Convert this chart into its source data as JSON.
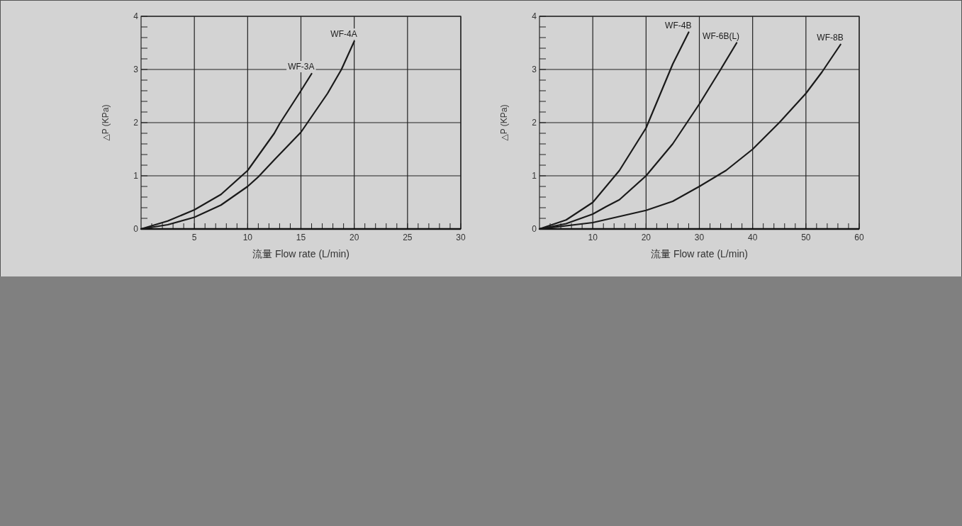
{
  "chart_data": [
    {
      "type": "line",
      "xlabel": "流量 Flow rate (L/min)",
      "ylabel": "△P (KPa)",
      "grid": true,
      "xlim": [
        0,
        30
      ],
      "ylim": [
        0,
        4
      ],
      "xticks": [
        {
          "value": 1,
          "label": null
        },
        {
          "value": 2,
          "label": null
        },
        {
          "value": 3,
          "label": null
        },
        {
          "value": 4,
          "label": null
        },
        5,
        {
          "value": 6,
          "label": null
        },
        {
          "value": 7,
          "label": null
        },
        {
          "value": 8,
          "label": null
        },
        {
          "value": 9,
          "label": null
        },
        10,
        {
          "value": 11,
          "label": null
        },
        {
          "value": 12,
          "label": null
        },
        {
          "value": 13,
          "label": null
        },
        {
          "value": 14,
          "label": null
        },
        15,
        {
          "value": 16,
          "label": null
        },
        {
          "value": 17,
          "label": null
        },
        {
          "value": 18,
          "label": null
        },
        {
          "value": 19,
          "label": null
        },
        20,
        {
          "value": 21,
          "label": null
        },
        {
          "value": 22,
          "label": null
        },
        {
          "value": 23,
          "label": null
        },
        {
          "value": 24,
          "label": null
        },
        25,
        {
          "value": 26,
          "label": null
        },
        {
          "value": 27,
          "label": null
        },
        {
          "value": 28,
          "label": null
        },
        {
          "value": 29,
          "label": null
        },
        30
      ],
      "yticks": [
        0,
        {
          "value": 0.2,
          "label": null
        },
        {
          "value": 0.4,
          "label": null
        },
        {
          "value": 0.6,
          "label": null
        },
        {
          "value": 0.8,
          "label": null
        },
        1,
        {
          "value": 1.2,
          "label": null
        },
        {
          "value": 1.4,
          "label": null
        },
        {
          "value": 1.6,
          "label": null
        },
        {
          "value": 1.8,
          "label": null
        },
        2,
        {
          "value": 2.2,
          "label": null
        },
        {
          "value": 2.4,
          "label": null
        },
        {
          "value": 2.6,
          "label": null
        },
        {
          "value": 2.8,
          "label": null
        },
        3,
        {
          "value": 3.2,
          "label": null
        },
        {
          "value": 3.4,
          "label": null
        },
        {
          "value": 3.6,
          "label": null
        },
        {
          "value": 3.8,
          "label": null
        },
        4
      ],
      "series": [
        {
          "name": "WF-3A",
          "color": "#1a1a1a",
          "x": [
            0,
            2.5,
            5,
            7.5,
            10,
            12.5,
            13,
            15,
            16
          ],
          "values": [
            0,
            0.15,
            0.36,
            0.65,
            1.1,
            1.8,
            1.98,
            2.6,
            2.92
          ]
        },
        {
          "name": "WF-4A",
          "color": "#1a1a1a",
          "x": [
            0,
            2.5,
            5,
            7.5,
            10,
            11,
            12.5,
            15,
            17.5,
            18.8,
            20
          ],
          "values": [
            0,
            0.08,
            0.22,
            0.45,
            0.8,
            0.98,
            1.3,
            1.82,
            2.55,
            3.0,
            3.53
          ]
        }
      ]
    },
    {
      "type": "line",
      "xlabel": "流量 Flow rate (L/min)",
      "ylabel": "△P (KPa)",
      "grid": true,
      "xlim": [
        0,
        60
      ],
      "ylim": [
        0,
        4
      ],
      "xticks": [
        {
          "value": 2,
          "label": null
        },
        {
          "value": 4,
          "label": null
        },
        {
          "value": 6,
          "label": null
        },
        {
          "value": 8,
          "label": null
        },
        10,
        {
          "value": 12,
          "label": null
        },
        {
          "value": 14,
          "label": null
        },
        {
          "value": 16,
          "label": null
        },
        {
          "value": 18,
          "label": null
        },
        20,
        {
          "value": 22,
          "label": null
        },
        {
          "value": 24,
          "label": null
        },
        {
          "value": 26,
          "label": null
        },
        {
          "value": 28,
          "label": null
        },
        30,
        {
          "value": 32,
          "label": null
        },
        {
          "value": 34,
          "label": null
        },
        {
          "value": 36,
          "label": null
        },
        {
          "value": 38,
          "label": null
        },
        40,
        {
          "value": 42,
          "label": null
        },
        {
          "value": 44,
          "label": null
        },
        {
          "value": 46,
          "label": null
        },
        {
          "value": 48,
          "label": null
        },
        50,
        {
          "value": 52,
          "label": null
        },
        {
          "value": 54,
          "label": null
        },
        {
          "value": 56,
          "label": null
        },
        {
          "value": 58,
          "label": null
        },
        60
      ],
      "yticks": [
        0,
        {
          "value": 0.2,
          "label": null
        },
        {
          "value": 0.4,
          "label": null
        },
        {
          "value": 0.6,
          "label": null
        },
        {
          "value": 0.8,
          "label": null
        },
        1,
        {
          "value": 1.2,
          "label": null
        },
        {
          "value": 1.4,
          "label": null
        },
        {
          "value": 1.6,
          "label": null
        },
        {
          "value": 1.8,
          "label": null
        },
        2,
        {
          "value": 2.2,
          "label": null
        },
        {
          "value": 2.4,
          "label": null
        },
        {
          "value": 2.6,
          "label": null
        },
        {
          "value": 2.8,
          "label": null
        },
        3,
        {
          "value": 3.2,
          "label": null
        },
        {
          "value": 3.4,
          "label": null
        },
        {
          "value": 3.6,
          "label": null
        },
        {
          "value": 3.8,
          "label": null
        },
        4
      ],
      "series": [
        {
          "name": "WF-4B",
          "color": "#1a1a1a",
          "x": [
            0,
            5,
            10,
            15,
            20,
            22.5,
            25,
            28
          ],
          "values": [
            0,
            0.17,
            0.5,
            1.1,
            1.9,
            2.5,
            3.1,
            3.7
          ]
        },
        {
          "name": "WF-6B(L)",
          "color": "#1a1a1a",
          "x": [
            0,
            5,
            10,
            12.5,
            15,
            20,
            25,
            30,
            34,
            37
          ],
          "values": [
            0,
            0.1,
            0.28,
            0.42,
            0.55,
            1.0,
            1.6,
            2.35,
            3.0,
            3.5
          ]
        },
        {
          "name": "WF-8B",
          "color": "#1a1a1a",
          "x": [
            0,
            10,
            20,
            25,
            30,
            35,
            40,
            45,
            50,
            53,
            56.5
          ],
          "values": [
            0,
            0.12,
            0.35,
            0.52,
            0.8,
            1.1,
            1.5,
            2.0,
            2.55,
            2.95,
            3.47
          ]
        }
      ]
    }
  ]
}
